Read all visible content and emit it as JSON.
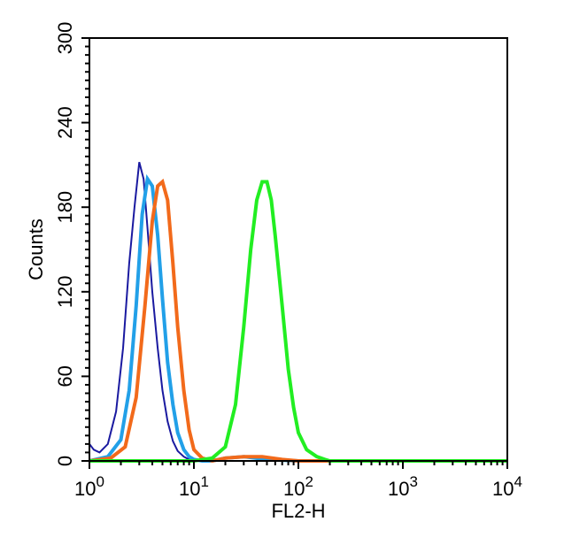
{
  "chart_data": {
    "type": "line",
    "title": "",
    "xlabel": "FL2-H",
    "ylabel": "Counts",
    "xscale": "log",
    "xlim": [
      1,
      10000
    ],
    "ylim": [
      0,
      300
    ],
    "y_ticks": [
      0,
      60,
      120,
      180,
      240,
      300
    ],
    "y_tick_labels": [
      "0",
      "60",
      "120",
      "180",
      "240",
      "300"
    ],
    "x_ticks": [
      1,
      10,
      100,
      1000,
      10000
    ],
    "x_tick_labels": [
      {
        "base": "10",
        "exp": "0"
      },
      {
        "base": "10",
        "exp": "1"
      },
      {
        "base": "10",
        "exp": "2"
      },
      {
        "base": "10",
        "exp": "3"
      },
      {
        "base": "10",
        "exp": "4"
      }
    ],
    "grid": false,
    "series": [
      {
        "color": "#1a1aa0",
        "stroke": 2,
        "x": [
          1,
          1.1,
          1.25,
          1.5,
          1.8,
          2.1,
          2.4,
          2.7,
          3.0,
          3.3,
          3.6,
          4.0,
          4.5,
          5.0,
          5.6,
          6.3,
          7.0,
          8.0,
          9.0,
          10,
          12,
          15,
          20,
          40,
          100,
          1000,
          10000
        ],
        "y": [
          12,
          8,
          6,
          12,
          35,
          80,
          140,
          180,
          212,
          200,
          165,
          120,
          80,
          50,
          28,
          14,
          7,
          3,
          1,
          0,
          0,
          0,
          0,
          0,
          0,
          0,
          0
        ]
      },
      {
        "color": "#22a0e8",
        "stroke": 4,
        "x": [
          1,
          1.5,
          2.0,
          2.4,
          2.8,
          3.2,
          3.6,
          4.0,
          4.5,
          5.0,
          5.6,
          6.3,
          7.0,
          8.0,
          9.0,
          10,
          12,
          15,
          20,
          30,
          50,
          100,
          1000,
          10000
        ],
        "y": [
          0,
          3,
          15,
          50,
          110,
          175,
          200,
          195,
          160,
          115,
          70,
          40,
          20,
          8,
          3,
          1,
          0,
          0,
          2,
          3,
          1,
          0,
          0,
          0
        ]
      },
      {
        "color": "#f26a1b",
        "stroke": 4,
        "x": [
          1,
          1.6,
          2.2,
          2.8,
          3.4,
          4.0,
          4.5,
          5.0,
          5.6,
          6.3,
          7.0,
          8.0,
          9.0,
          10,
          12,
          15,
          20,
          30,
          45,
          70,
          100,
          1000,
          10000
        ],
        "y": [
          0,
          2,
          10,
          45,
          110,
          170,
          195,
          198,
          185,
          140,
          95,
          50,
          22,
          8,
          2,
          0,
          2,
          3,
          3,
          1,
          0,
          0,
          0
        ]
      },
      {
        "color": "#22ee22",
        "stroke": 4,
        "x": [
          1,
          10,
          15,
          20,
          25,
          30,
          35,
          40,
          45,
          50,
          55,
          60,
          70,
          80,
          90,
          100,
          120,
          150,
          180,
          200,
          300,
          1000,
          10000
        ],
        "y": [
          0,
          0,
          2,
          10,
          40,
          95,
          150,
          185,
          198,
          198,
          185,
          160,
          110,
          65,
          38,
          20,
          8,
          3,
          1,
          0,
          0,
          0,
          0
        ]
      }
    ]
  }
}
